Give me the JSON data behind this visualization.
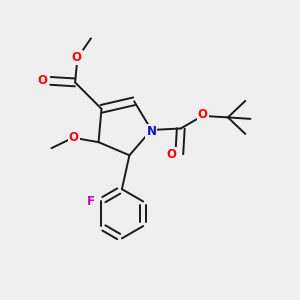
{
  "bg_color": "#efefef",
  "bond_color": "#1a1a1a",
  "bond_width": 1.4,
  "atom_colors": {
    "O": "#ff0000",
    "N": "#1010cc",
    "F": "#cc00bb",
    "C": "#1a1a1a"
  },
  "font_size": 8.5
}
